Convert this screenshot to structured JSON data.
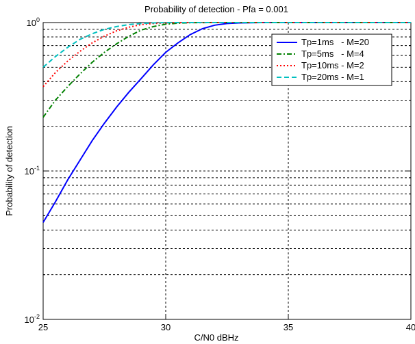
{
  "chart_data": {
    "type": "line",
    "title": "Probability of detection - Pfa = 0.001",
    "xlabel": "C/N0 dBHz",
    "ylabel": "Probability of detection",
    "xlim": [
      25,
      40
    ],
    "ylim": [
      0.01,
      1
    ],
    "yscale": "log",
    "grid": "on (dashed)",
    "legend_position": "top-right",
    "x_ticks": [
      25,
      30,
      35,
      40
    ],
    "y_ticks": [
      {
        "value": 0.01,
        "base": "10",
        "exp": "-2"
      },
      {
        "value": 0.1,
        "base": "10",
        "exp": "-1"
      },
      {
        "value": 1,
        "base": "10",
        "exp": "0"
      }
    ],
    "series": [
      {
        "name": "Tp=1ms   - M=20",
        "color": "#0000ff",
        "style": "solid",
        "x": [
          25,
          25.5,
          26,
          26.5,
          27,
          27.5,
          28,
          28.5,
          29,
          29.5,
          30,
          30.5,
          31,
          31.5,
          32,
          32.5,
          33,
          34,
          35,
          40
        ],
        "y": [
          0.045,
          0.062,
          0.087,
          0.118,
          0.16,
          0.21,
          0.27,
          0.34,
          0.42,
          0.52,
          0.63,
          0.73,
          0.83,
          0.91,
          0.96,
          0.985,
          0.995,
          1.0,
          1.0,
          1.0
        ]
      },
      {
        "name": "Tp=5ms   - M=4",
        "color": "#008000",
        "style": "dash-dot",
        "x": [
          25,
          25.5,
          26,
          26.5,
          27,
          27.5,
          28,
          28.5,
          29,
          29.5,
          30,
          30.5,
          31,
          32,
          35,
          40
        ],
        "y": [
          0.23,
          0.3,
          0.37,
          0.45,
          0.54,
          0.63,
          0.72,
          0.81,
          0.89,
          0.94,
          0.975,
          0.99,
          0.998,
          1.0,
          1.0,
          1.0
        ]
      },
      {
        "name": "Tp=10ms - M=2",
        "color": "#ff0000",
        "style": "dotted",
        "x": [
          25,
          25.5,
          26,
          26.5,
          27,
          27.5,
          28,
          28.5,
          29,
          29.5,
          30,
          30.5,
          31,
          32,
          35,
          40
        ],
        "y": [
          0.37,
          0.46,
          0.55,
          0.64,
          0.73,
          0.81,
          0.88,
          0.93,
          0.97,
          0.985,
          0.995,
          0.999,
          1.0,
          1.0,
          1.0,
          1.0
        ]
      },
      {
        "name": "Tp=20ms - M=1",
        "color": "#00bfbf",
        "style": "dashed",
        "x": [
          25,
          25.5,
          26,
          26.5,
          27,
          27.5,
          28,
          28.5,
          29,
          29.5,
          30,
          30.5,
          31,
          32,
          35,
          40
        ],
        "y": [
          0.5,
          0.59,
          0.68,
          0.77,
          0.84,
          0.9,
          0.94,
          0.97,
          0.985,
          0.995,
          0.999,
          1.0,
          1.0,
          1.0,
          1.0,
          1.0
        ]
      }
    ]
  }
}
